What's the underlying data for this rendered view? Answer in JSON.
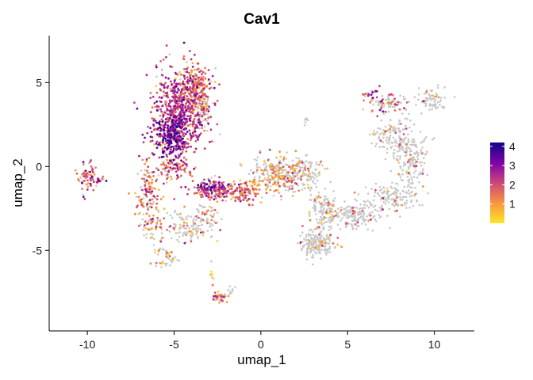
{
  "chart_data": {
    "type": "scatter",
    "title": "Cav1",
    "xlabel": "umap_1",
    "ylabel": "umap_2",
    "xlim": [
      -12.2,
      12.3
    ],
    "ylim": [
      -9.8,
      7.8
    ],
    "x_ticks": [
      -10,
      -5,
      0,
      5,
      10
    ],
    "y_ticks": [
      5,
      0,
      -5
    ],
    "x_tick_labels": [
      "-10",
      "-5",
      "0",
      "5",
      "10"
    ],
    "y_tick_labels": [
      "5",
      "0",
      "-5"
    ],
    "grid": false,
    "legend": {
      "placement": "right",
      "type": "colorbar",
      "range": [
        0,
        4.2
      ],
      "ticks": [
        1,
        2,
        3,
        4
      ],
      "tick_labels": [
        "1",
        "2",
        "3",
        "4"
      ],
      "colors": [
        "#fde725",
        "#f89540",
        "#cc4778",
        "#7e03a8",
        "#0d0887"
      ]
    },
    "colors": {
      "unexpressed": "#c8c8c8",
      "low": "#f5d13a",
      "mid": "#ee7b35",
      "high": "#b02a8e",
      "very_high": "#0d0887"
    },
    "clusters": [
      {
        "cx": -4.6,
        "cy": 3.2,
        "rx": 1.4,
        "ry": 2.6,
        "n": 700,
        "expr": 0.92,
        "mean": 2.2
      },
      {
        "cx": -5.3,
        "cy": 1.8,
        "rx": 0.9,
        "ry": 1.3,
        "n": 200,
        "expr": 0.95,
        "mean": 3.1
      },
      {
        "cx": -3.8,
        "cy": 4.8,
        "rx": 0.9,
        "ry": 1.0,
        "n": 160,
        "expr": 0.9,
        "mean": 1.4
      },
      {
        "cx": -3.3,
        "cy": 3.6,
        "rx": 0.5,
        "ry": 0.9,
        "n": 70,
        "expr": 0.35,
        "mean": 1.2
      },
      {
        "cx": -5.1,
        "cy": 0.0,
        "rx": 0.9,
        "ry": 0.7,
        "n": 80,
        "expr": 0.85,
        "mean": 1.7
      },
      {
        "cx": -10.0,
        "cy": -0.6,
        "rx": 0.55,
        "ry": 0.75,
        "n": 60,
        "expr": 0.85,
        "mean": 1.9
      },
      {
        "cx": -9.3,
        "cy": -0.8,
        "rx": 0.3,
        "ry": 0.25,
        "n": 15,
        "expr": 0.9,
        "mean": 2.3
      },
      {
        "cx": -6.5,
        "cy": -1.5,
        "rx": 0.6,
        "ry": 1.6,
        "n": 110,
        "expr": 0.8,
        "mean": 1.5
      },
      {
        "cx": -6.3,
        "cy": -3.5,
        "rx": 0.7,
        "ry": 0.8,
        "n": 60,
        "expr": 0.55,
        "mean": 1.1
      },
      {
        "cx": -4.2,
        "cy": -3.6,
        "rx": 1.3,
        "ry": 1.0,
        "n": 130,
        "expr": 0.3,
        "mean": 1.3
      },
      {
        "cx": -3.1,
        "cy": -2.9,
        "rx": 0.6,
        "ry": 0.6,
        "n": 40,
        "expr": 0.4,
        "mean": 1.4
      },
      {
        "cx": -5.5,
        "cy": -5.4,
        "rx": 0.7,
        "ry": 0.5,
        "n": 50,
        "expr": 0.25,
        "mean": 1.0
      },
      {
        "cx": -2.6,
        "cy": -1.4,
        "rx": 1.3,
        "ry": 0.6,
        "n": 150,
        "expr": 0.85,
        "mean": 2.0
      },
      {
        "cx": -1.0,
        "cy": -1.6,
        "rx": 1.0,
        "ry": 0.6,
        "n": 110,
        "expr": 0.8,
        "mean": 1.4
      },
      {
        "cx": -3.1,
        "cy": -1.2,
        "rx": 0.6,
        "ry": 0.4,
        "n": 30,
        "expr": 0.9,
        "mean": 2.9
      },
      {
        "cx": 0.9,
        "cy": -0.4,
        "rx": 1.3,
        "ry": 1.0,
        "n": 240,
        "expr": 0.4,
        "mean": 1.2
      },
      {
        "cx": 2.4,
        "cy": -0.4,
        "rx": 1.1,
        "ry": 1.0,
        "n": 150,
        "expr": 0.12,
        "mean": 1.0
      },
      {
        "cx": 3.6,
        "cy": -2.6,
        "rx": 0.9,
        "ry": 1.0,
        "n": 120,
        "expr": 0.1,
        "mean": 1.0
      },
      {
        "cx": 3.3,
        "cy": -4.6,
        "rx": 0.9,
        "ry": 0.7,
        "n": 190,
        "expr": 0.12,
        "mean": 1.4
      },
      {
        "cx": 5.4,
        "cy": -2.9,
        "rx": 1.5,
        "ry": 0.7,
        "n": 160,
        "expr": 0.1,
        "mean": 1.6
      },
      {
        "cx": 7.6,
        "cy": -1.8,
        "rx": 1.5,
        "ry": 0.8,
        "n": 150,
        "expr": 0.08,
        "mean": 1.3
      },
      {
        "cx": 8.6,
        "cy": 0.6,
        "rx": 1.0,
        "ry": 1.6,
        "n": 180,
        "expr": 0.1,
        "mean": 1.4
      },
      {
        "cx": 7.5,
        "cy": 1.8,
        "rx": 0.9,
        "ry": 1.0,
        "n": 90,
        "expr": 0.1,
        "mean": 1.2
      },
      {
        "cx": 7.4,
        "cy": 3.7,
        "rx": 1.0,
        "ry": 0.5,
        "n": 80,
        "expr": 0.45,
        "mean": 1.8
      },
      {
        "cx": 6.3,
        "cy": 4.4,
        "rx": 0.5,
        "ry": 0.5,
        "n": 25,
        "expr": 0.7,
        "mean": 2.3
      },
      {
        "cx": 9.8,
        "cy": 4.0,
        "rx": 0.8,
        "ry": 0.6,
        "n": 70,
        "expr": 0.1,
        "mean": 1.2
      },
      {
        "cx": -2.4,
        "cy": -7.8,
        "rx": 0.4,
        "ry": 0.25,
        "n": 35,
        "expr": 0.8,
        "mean": 1.6
      },
      {
        "cx": -1.8,
        "cy": -7.4,
        "rx": 0.3,
        "ry": 0.3,
        "n": 10,
        "expr": 0.1,
        "mean": 1.0
      },
      {
        "cx": 2.6,
        "cy": 2.8,
        "rx": 0.1,
        "ry": 0.25,
        "n": 8,
        "expr": 0.0,
        "mean": 1.0
      },
      {
        "cx": -2.8,
        "cy": -6.2,
        "rx": 0.15,
        "ry": 0.6,
        "n": 8,
        "expr": 0.3,
        "mean": 1.0
      }
    ]
  }
}
